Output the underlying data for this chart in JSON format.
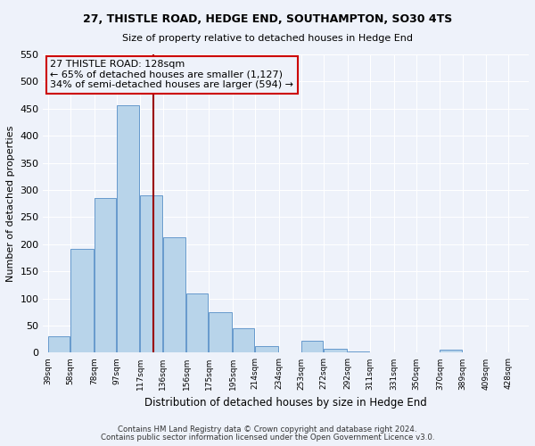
{
  "title": "27, THISTLE ROAD, HEDGE END, SOUTHAMPTON, SO30 4TS",
  "subtitle": "Size of property relative to detached houses in Hedge End",
  "xlabel": "Distribution of detached houses by size in Hedge End",
  "ylabel": "Number of detached properties",
  "bar_values": [
    30,
    192,
    285,
    457,
    290,
    213,
    110,
    74,
    46,
    13,
    0,
    22,
    8,
    3,
    0,
    0,
    0,
    5
  ],
  "bin_labels": [
    "39sqm",
    "58sqm",
    "78sqm",
    "97sqm",
    "117sqm",
    "136sqm",
    "156sqm",
    "175sqm",
    "195sqm",
    "214sqm",
    "234sqm",
    "253sqm",
    "272sqm",
    "292sqm",
    "311sqm",
    "331sqm",
    "350sqm",
    "370sqm",
    "389sqm",
    "409sqm",
    "428sqm"
  ],
  "bar_color": "#b8d4ea",
  "bar_edge_color": "#6699cc",
  "property_size": 128,
  "vline_color": "#990000",
  "annotation_box_color": "#cc0000",
  "annotation_line1": "27 THISTLE ROAD: 128sqm",
  "annotation_line2": "← 65% of detached houses are smaller (1,127)",
  "annotation_line3": "34% of semi-detached houses are larger (594) →",
  "ylim": [
    0,
    550
  ],
  "yticks": [
    0,
    50,
    100,
    150,
    200,
    250,
    300,
    350,
    400,
    450,
    500,
    550
  ],
  "footer1": "Contains HM Land Registry data © Crown copyright and database right 2024.",
  "footer2": "Contains public sector information licensed under the Open Government Licence v3.0.",
  "background_color": "#eef2fa",
  "grid_color": "#ffffff",
  "title_fontsize": 9,
  "subtitle_fontsize": 8
}
